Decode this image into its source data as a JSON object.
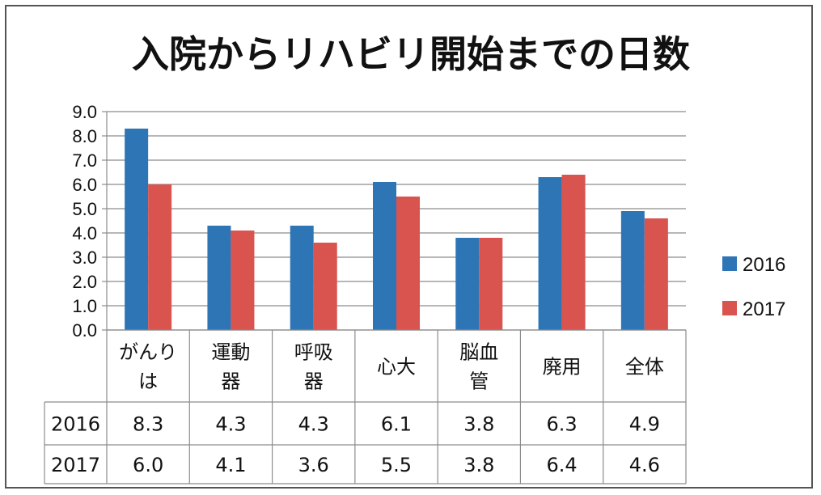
{
  "chart_data": {
    "type": "bar",
    "title": "入院からリハビリ開始までの日数",
    "categories": [
      [
        "がんり",
        "は"
      ],
      [
        "運動",
        "器"
      ],
      [
        "呼吸",
        "器"
      ],
      [
        "心大"
      ],
      [
        "脳血",
        "管"
      ],
      [
        "廃用"
      ],
      [
        "全体"
      ]
    ],
    "series": [
      {
        "name": "2016",
        "color": "#2E75B6",
        "values": [
          8.3,
          4.3,
          4.3,
          6.1,
          3.8,
          6.3,
          4.9
        ]
      },
      {
        "name": "2017",
        "color": "#D9534F",
        "values": [
          6.0,
          4.1,
          3.6,
          5.5,
          3.8,
          6.4,
          4.6
        ]
      }
    ],
    "table_values": [
      [
        "8.3",
        "4.3",
        "4.3",
        "6.1",
        "3.8",
        "6.3",
        "4.9"
      ],
      [
        "6.0",
        "4.1",
        "3.6",
        "5.5",
        "3.8",
        "6.4",
        "4.6"
      ]
    ],
    "ylim": [
      0,
      9
    ],
    "yticks": [
      "0.0",
      "1.0",
      "2.0",
      "3.0",
      "4.0",
      "5.0",
      "6.0",
      "7.0",
      "8.0",
      "9.0"
    ],
    "ytick_step": 1,
    "grid": true,
    "legend": "right",
    "xlabel": "",
    "ylabel": ""
  }
}
